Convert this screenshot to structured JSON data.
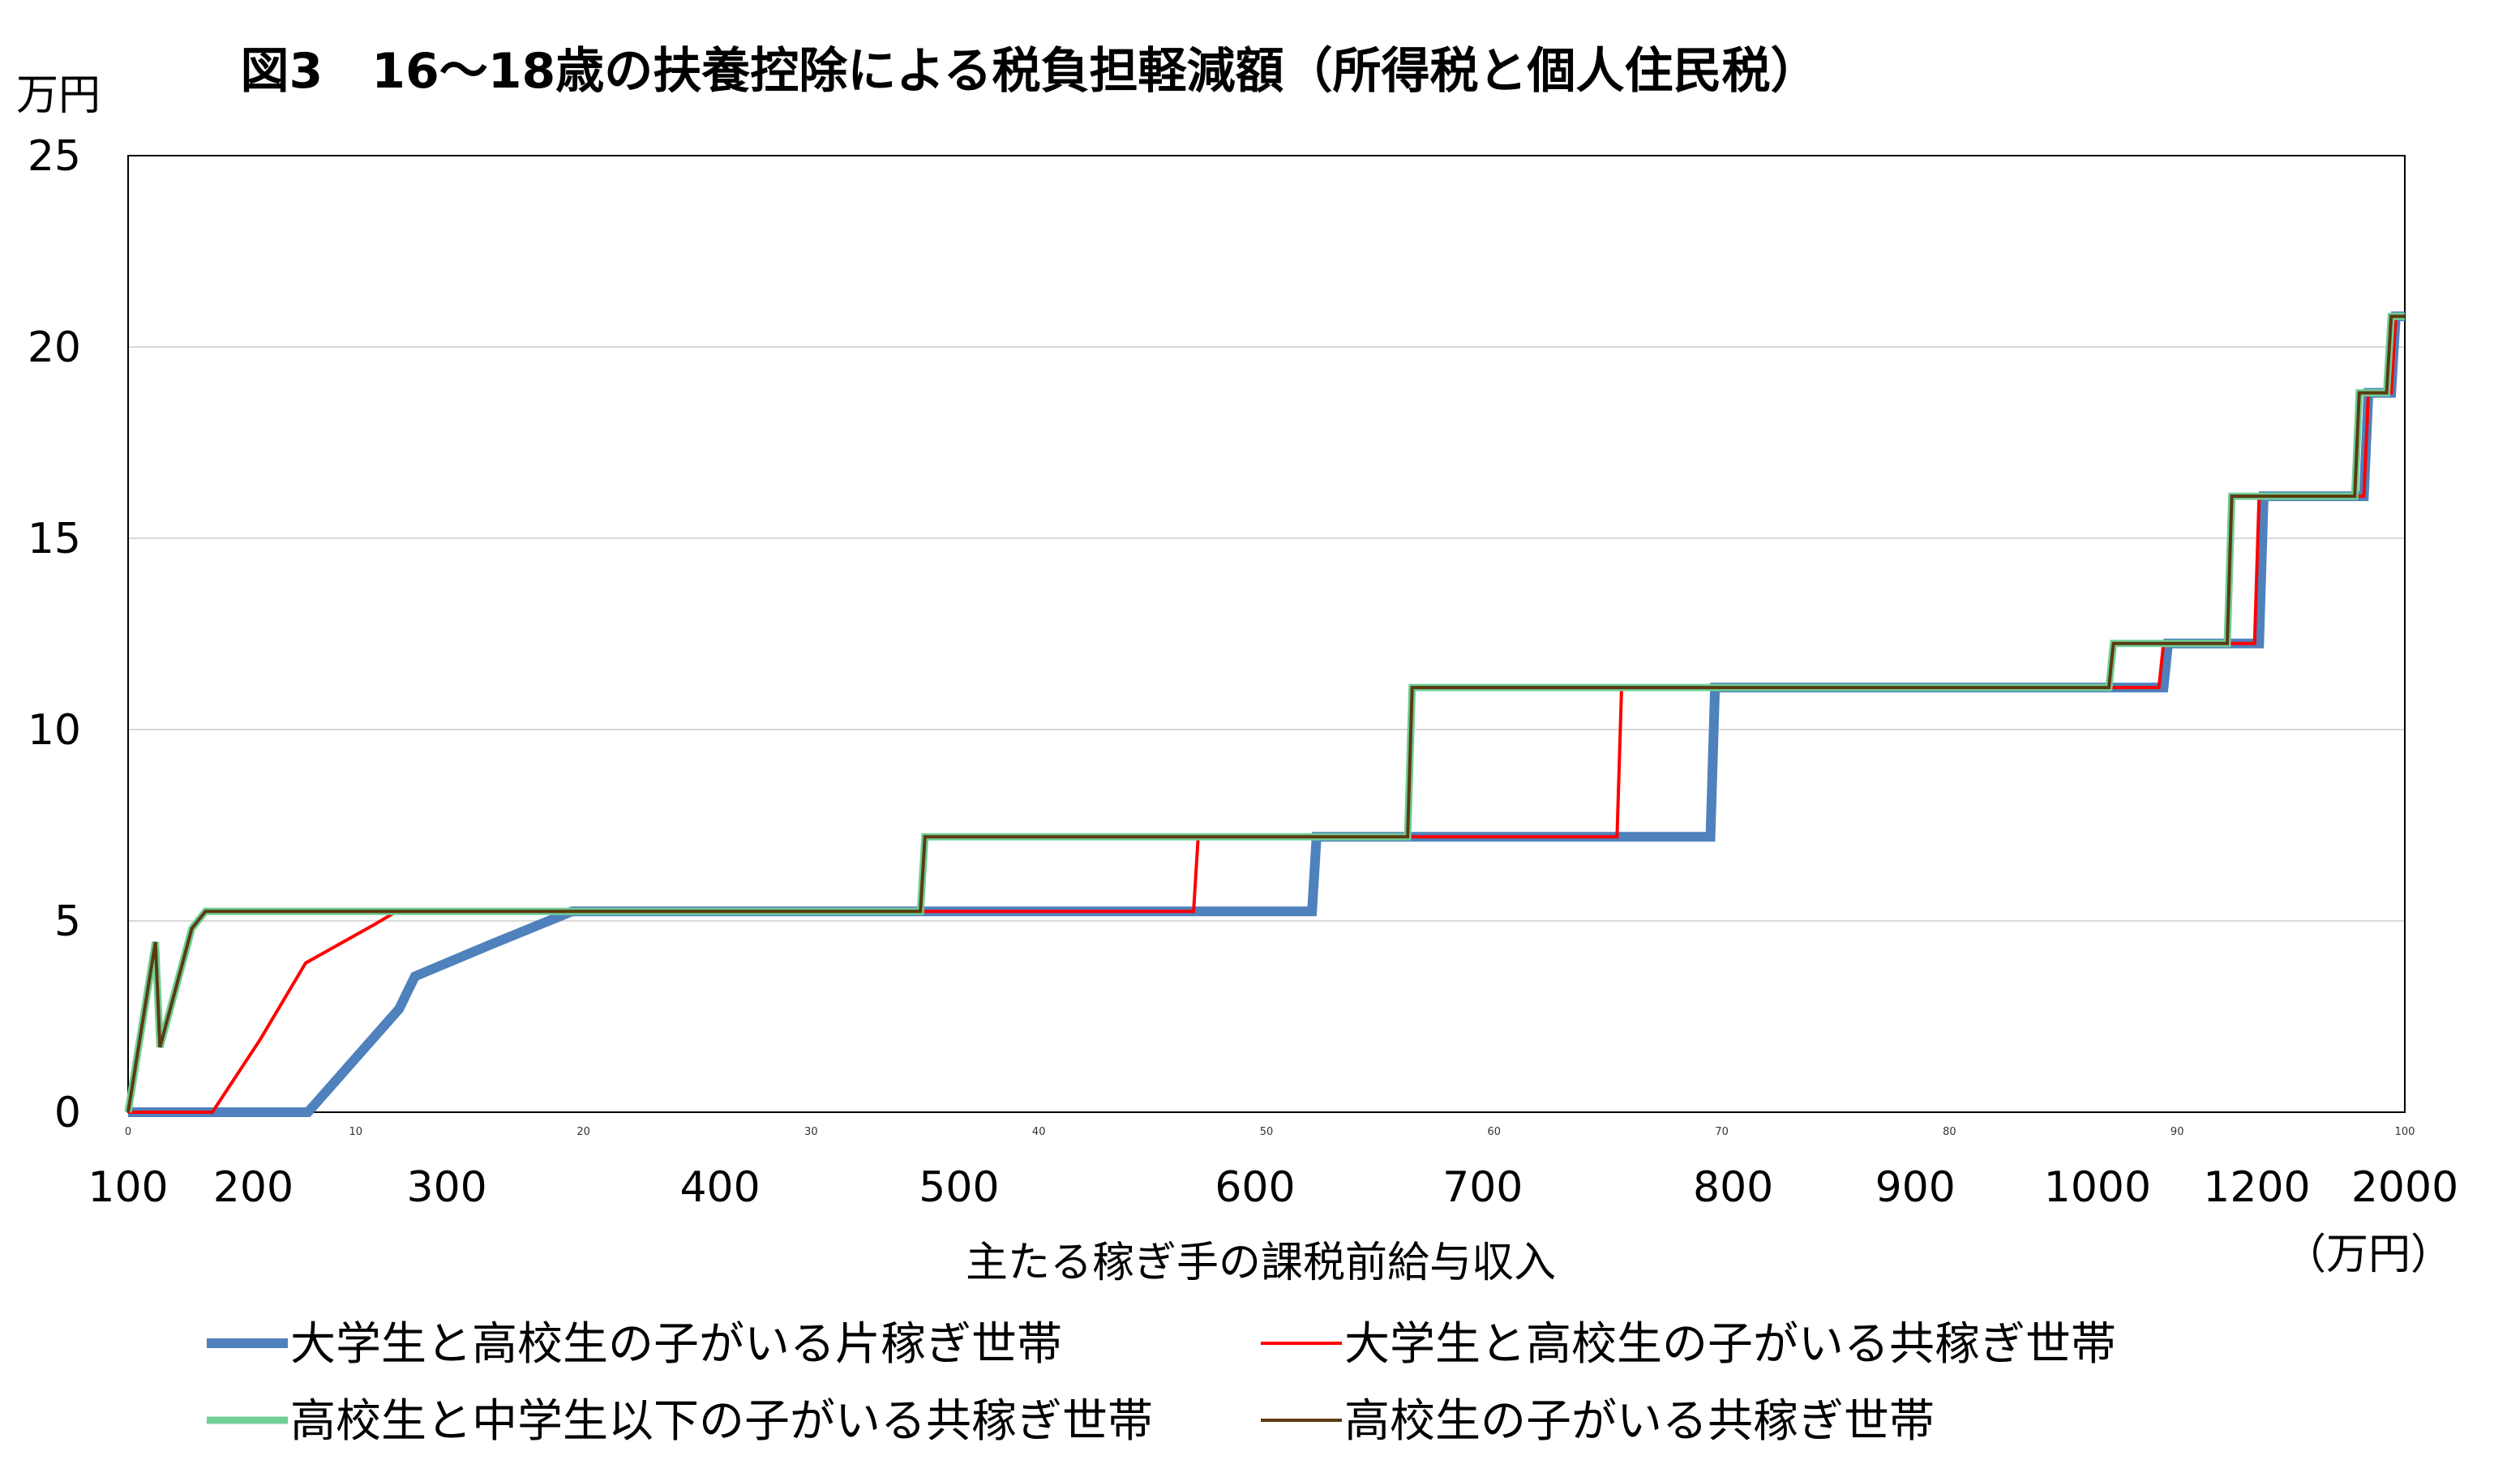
{
  "chart_data": {
    "type": "line",
    "title": "図3　16〜18歳の扶養控除による税負担軽減額（所得税と個人住民税）",
    "y_unit": "万円",
    "xlabel": "主たる稼ぎ手の課税前給与収入",
    "x_unit": "（万円）",
    "ylim": [
      0,
      25
    ],
    "yticks": [
      0,
      5,
      10,
      15,
      20,
      25
    ],
    "xlim": [
      0,
      100
    ],
    "x_minor_ticks": [
      "0",
      "10",
      "20",
      "30",
      "40",
      "50",
      "60",
      "70",
      "80",
      "90",
      "100"
    ],
    "x_category_labels": [
      {
        "pos": 0,
        "label": "100"
      },
      {
        "pos": 5.5,
        "label": "200"
      },
      {
        "pos": 14,
        "label": "300"
      },
      {
        "pos": 26,
        "label": "400"
      },
      {
        "pos": 36.5,
        "label": "500"
      },
      {
        "pos": 49.5,
        "label": "600"
      },
      {
        "pos": 59.5,
        "label": "700"
      },
      {
        "pos": 70.5,
        "label": "800"
      },
      {
        "pos": 78.5,
        "label": "900"
      },
      {
        "pos": 86.5,
        "label": "1000"
      },
      {
        "pos": 93.5,
        "label": "1200"
      },
      {
        "pos": 100,
        "label": "2000"
      }
    ],
    "grid": true,
    "series": [
      {
        "name": "大学生と高校生の子がいる片稼ぎ世帯",
        "color": "#4f81bd",
        "width": 12,
        "points": [
          [
            0,
            0
          ],
          [
            7.9,
            0
          ],
          [
            11.9,
            2.7
          ],
          [
            12.6,
            3.55
          ],
          [
            16,
            4.4
          ],
          [
            19.5,
            5.25
          ],
          [
            52,
            5.25
          ],
          [
            52.2,
            7.2
          ],
          [
            69.5,
            7.2
          ],
          [
            69.7,
            11.1
          ],
          [
            89.4,
            11.1
          ],
          [
            89.6,
            12.25
          ],
          [
            93.6,
            12.25
          ],
          [
            93.8,
            16.1
          ],
          [
            98.2,
            16.1
          ],
          [
            98.4,
            18.8
          ],
          [
            99.4,
            18.8
          ],
          [
            99.6,
            20.8
          ],
          [
            100,
            20.8
          ]
        ]
      },
      {
        "name": "大学生と高校生の子がいる共稼ぎ世帯",
        "color": "#ff0000",
        "width": 4,
        "points": [
          [
            0,
            0
          ],
          [
            3.7,
            0
          ],
          [
            5.8,
            1.9
          ],
          [
            7.8,
            3.9
          ],
          [
            10.8,
            4.9
          ],
          [
            11.8,
            5.25
          ],
          [
            46.8,
            5.25
          ],
          [
            47,
            7.2
          ],
          [
            65.4,
            7.2
          ],
          [
            65.6,
            11.1
          ],
          [
            89.2,
            11.1
          ],
          [
            89.4,
            12.25
          ],
          [
            93.4,
            12.25
          ],
          [
            93.6,
            16.1
          ],
          [
            98.2,
            16.1
          ],
          [
            98.4,
            18.8
          ],
          [
            99.4,
            18.8
          ],
          [
            99.6,
            20.8
          ],
          [
            100,
            20.8
          ]
        ]
      },
      {
        "name": "高校生と中学生以下の子がいる共稼ぎ世帯",
        "color": "#6fcf97",
        "width": 9,
        "points": [
          [
            0,
            0
          ],
          [
            1.2,
            4.45
          ],
          [
            1.4,
            1.7
          ],
          [
            2.8,
            4.8
          ],
          [
            3.4,
            5.25
          ],
          [
            34.8,
            5.25
          ],
          [
            35,
            7.2
          ],
          [
            56.2,
            7.2
          ],
          [
            56.4,
            11.1
          ],
          [
            87,
            11.1
          ],
          [
            87.2,
            12.25
          ],
          [
            92.2,
            12.25
          ],
          [
            92.4,
            16.1
          ],
          [
            97.8,
            16.1
          ],
          [
            98,
            18.8
          ],
          [
            99.2,
            18.8
          ],
          [
            99.4,
            20.8
          ],
          [
            100,
            20.8
          ]
        ]
      },
      {
        "name": "高校生の子がいる共稼ぎ世帯",
        "color": "#5c3a11",
        "width": 4,
        "points": [
          [
            0,
            0
          ],
          [
            1.2,
            4.45
          ],
          [
            1.4,
            1.7
          ],
          [
            2.8,
            4.8
          ],
          [
            3.4,
            5.25
          ],
          [
            34.8,
            5.25
          ],
          [
            35,
            7.2
          ],
          [
            56.2,
            7.2
          ],
          [
            56.4,
            11.1
          ],
          [
            87,
            11.1
          ],
          [
            87.2,
            12.25
          ],
          [
            92.2,
            12.25
          ],
          [
            92.4,
            16.1
          ],
          [
            97.8,
            16.1
          ],
          [
            98,
            18.8
          ],
          [
            99.2,
            18.8
          ],
          [
            99.4,
            20.8
          ],
          [
            100,
            20.8
          ]
        ]
      }
    ],
    "legend": {
      "placement": "bottom",
      "columns": 2
    }
  }
}
